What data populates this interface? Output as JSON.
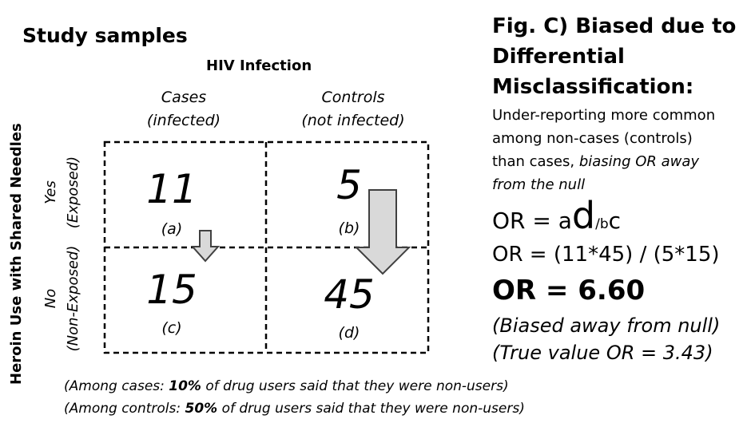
{
  "left": {
    "title": "Study samples",
    "column_header": "HIV Infection",
    "columns": [
      {
        "label": "Cases",
        "sub": "(infected)"
      },
      {
        "label": "Controls",
        "sub": "(not infected)"
      }
    ],
    "row_axis_label": "Heroin Use with Shared Needles",
    "rows": [
      {
        "label": "Yes",
        "sub": "(Exposed)"
      },
      {
        "label": "No",
        "sub": "(Non-Exposed)"
      }
    ],
    "cells": {
      "a": {
        "value": "11",
        "label": "(a)"
      },
      "b": {
        "value": "5",
        "label": "(b)"
      },
      "c": {
        "value": "15",
        "label": "(c)"
      },
      "d": {
        "value": "45",
        "label": "(d)"
      }
    },
    "notes": [
      {
        "pre": "(Among cases: ",
        "bold": "10%",
        "post": " of drug users said that they were non-users)"
      },
      {
        "pre": "(Among controls: ",
        "bold": "50%",
        "post": " of drug users said that they were non-users)"
      }
    ]
  },
  "right": {
    "title_lines": [
      "Fig. C) Biased due to",
      "Differential",
      "Misclassification:"
    ],
    "desc_line1": "Under-reporting more common",
    "desc_line2": "among non-cases (controls)",
    "desc_line3_plain": "than cases, ",
    "desc_line3_italic": "biasing OR away",
    "desc_line4_italic": "from the null",
    "formula": {
      "prefix": "OR = a",
      "d": "d",
      "slash_b": "/b",
      "c": "c"
    },
    "calc": "OR = (11*45) / (5*15)",
    "result": "OR = 6.60",
    "biased": "(Biased away from null)",
    "true_value": "(True value OR = 3.43)"
  },
  "colors": {
    "arrow_fill": "#d9d9d9",
    "arrow_stroke": "#404040",
    "grid": "#000000"
  }
}
